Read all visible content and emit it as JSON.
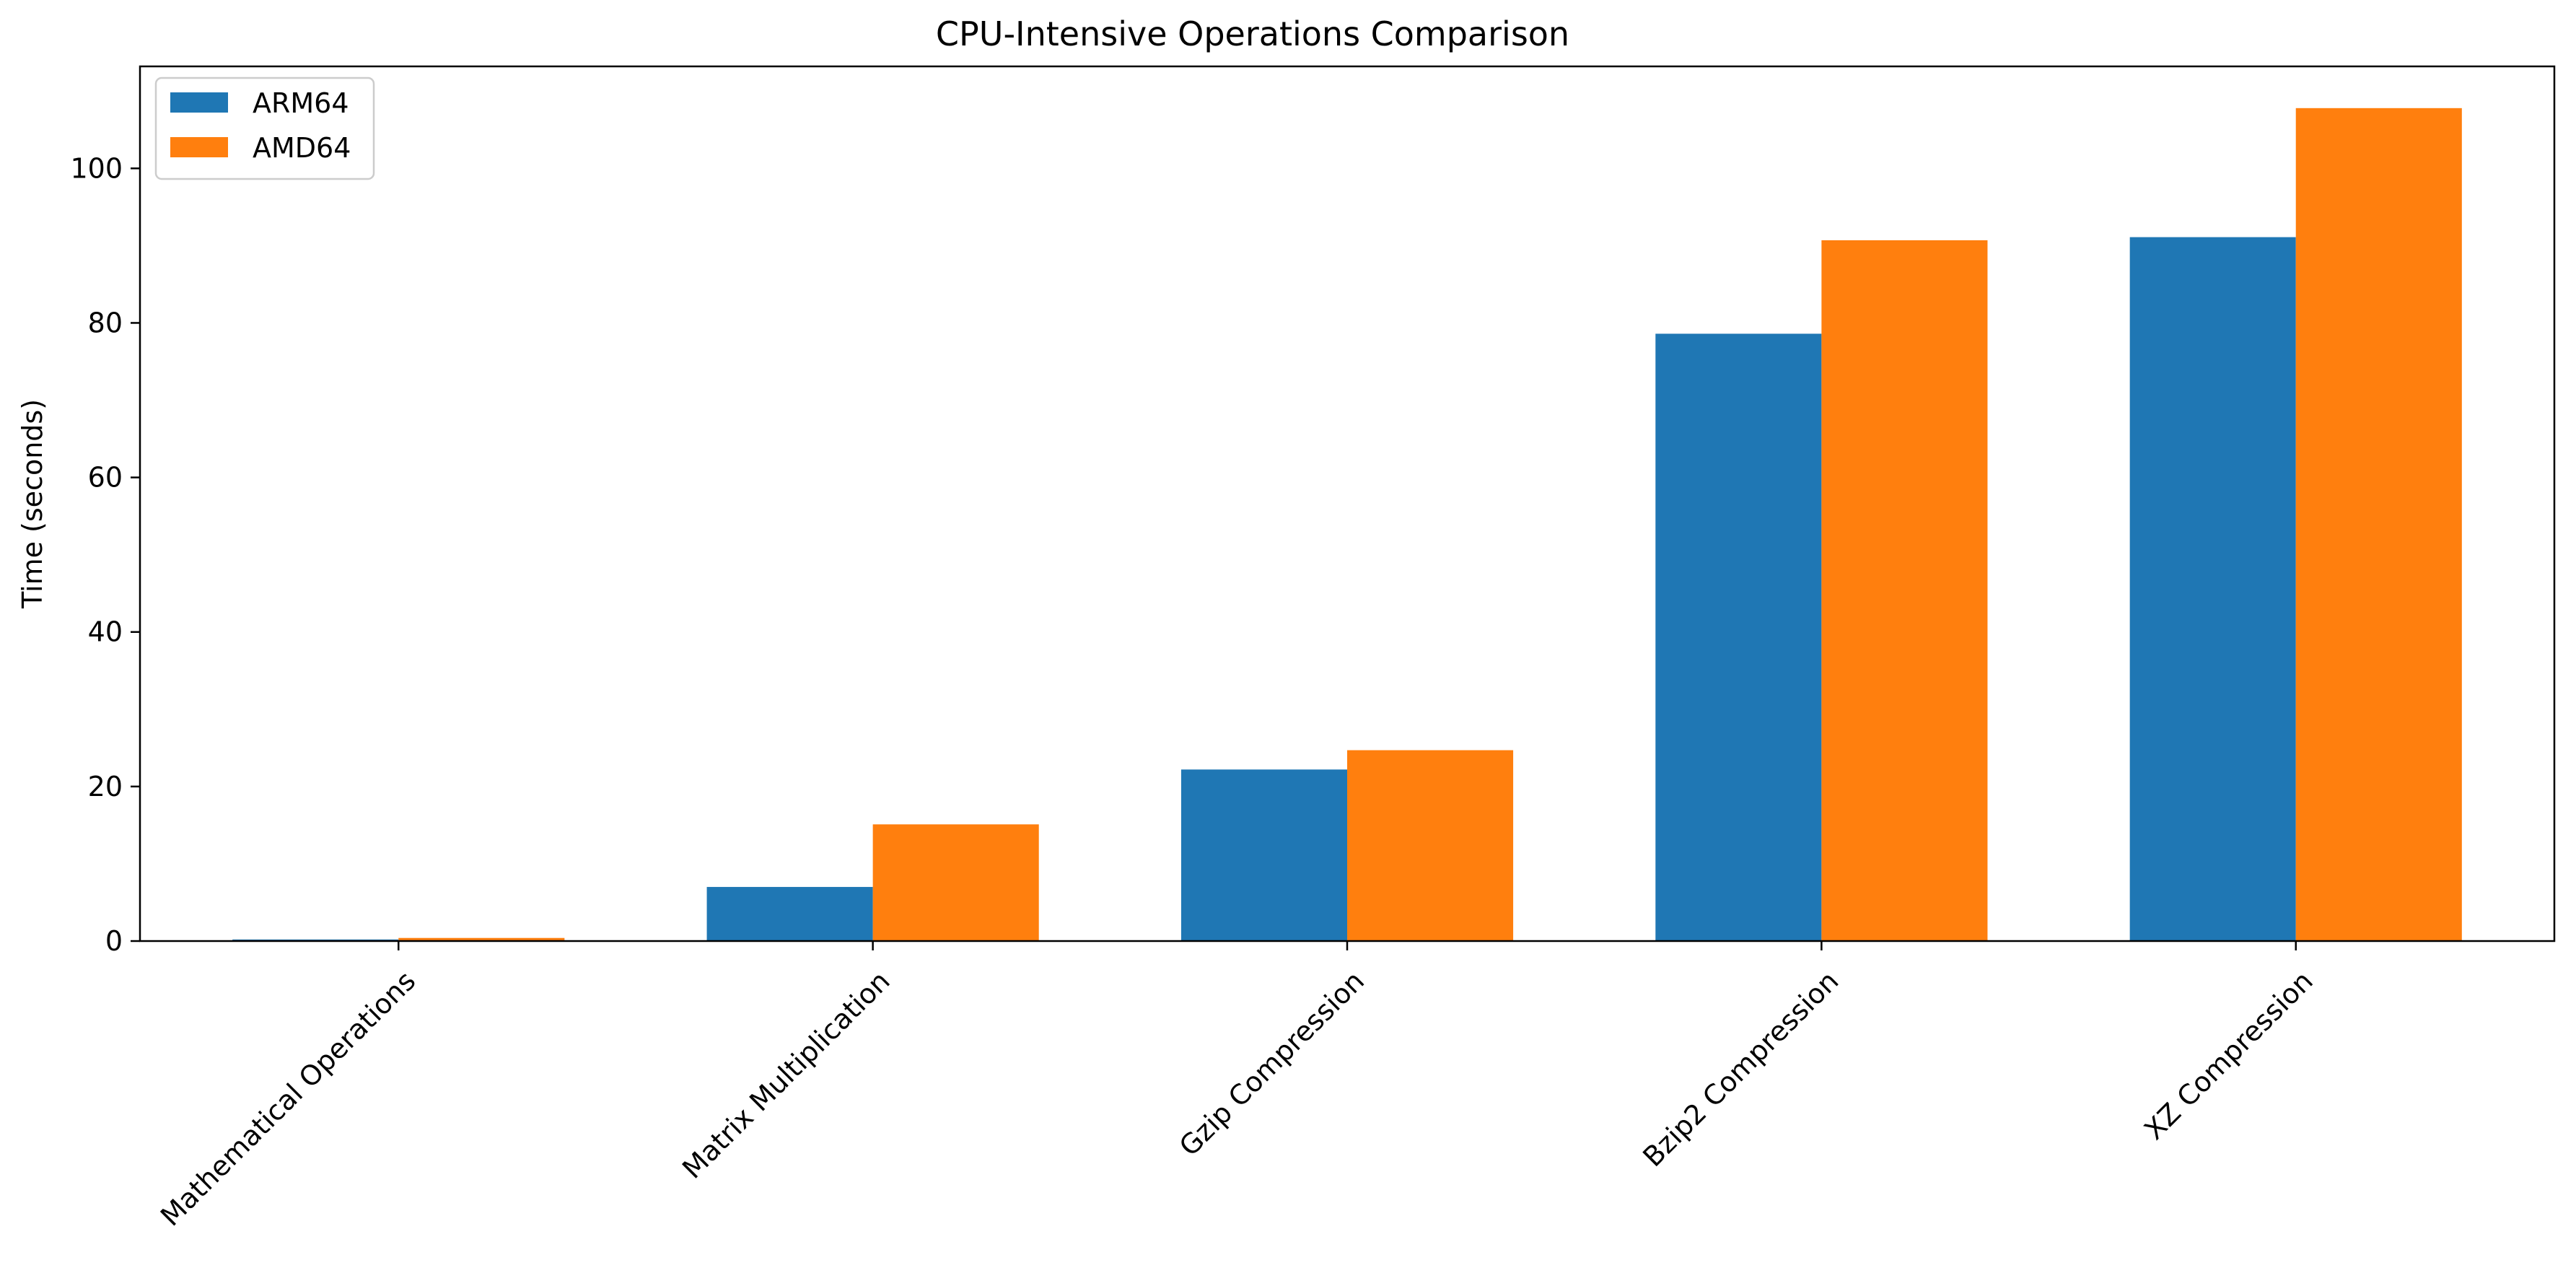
{
  "chart_data": {
    "type": "bar",
    "title": "CPU-Intensive Operations Comparison",
    "xlabel": "",
    "ylabel": "Time (seconds)",
    "categories": [
      "Mathematical Operations",
      "Matrix Multiplication",
      "Gzip Compression",
      "Bzip2 Compression",
      "XZ Compression"
    ],
    "series": [
      {
        "name": "ARM64",
        "color": "#1f77b4",
        "values": [
          0.2,
          7.0,
          22.2,
          78.6,
          91.1
        ]
      },
      {
        "name": "AMD64",
        "color": "#ff7f0e",
        "values": [
          0.4,
          15.1,
          24.7,
          90.7,
          107.8
        ]
      }
    ],
    "ylim": [
      0,
      113.2
    ],
    "yticks": [
      0,
      20,
      40,
      60,
      80,
      100
    ],
    "grid": false,
    "legend_position": "top-left"
  }
}
